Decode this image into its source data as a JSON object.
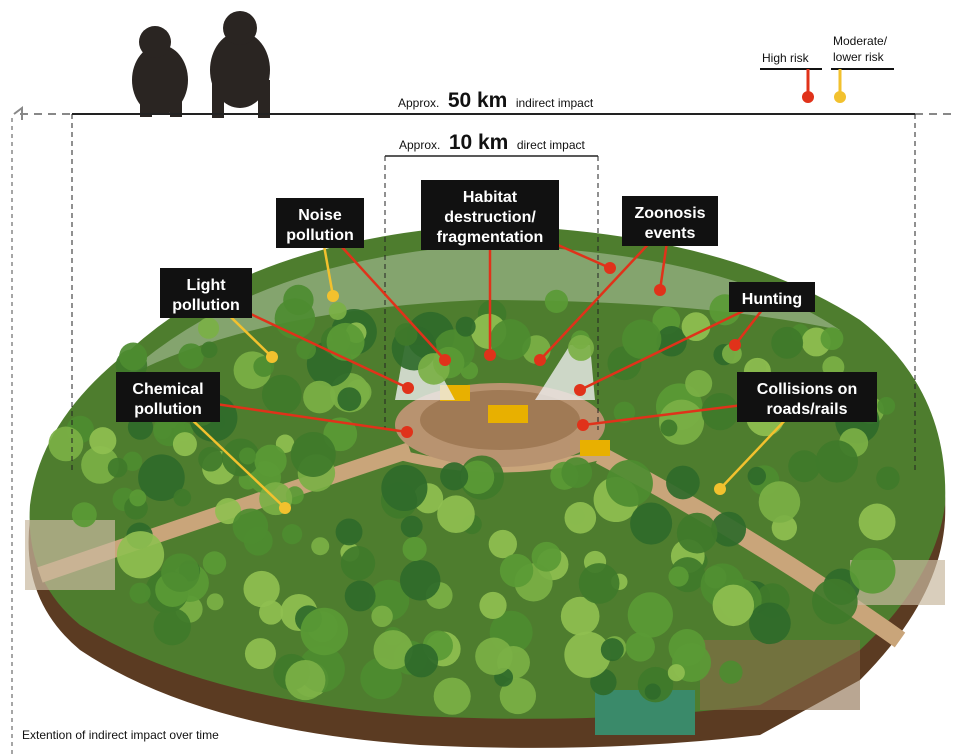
{
  "legend": {
    "high_risk": "High risk",
    "moderate_risk": [
      "Moderate/",
      "lower risk"
    ]
  },
  "scale": {
    "indirect": {
      "prefix": "Approx.",
      "distance": "50 km",
      "suffix": "indirect impact"
    },
    "direct": {
      "prefix": "Approx.",
      "distance": "10 km",
      "suffix": "direct impact"
    }
  },
  "labels": [
    {
      "lines": [
        "Noise",
        "pollution"
      ]
    },
    {
      "lines": [
        "Habitat",
        "destruction/",
        "fragmentation"
      ]
    },
    {
      "lines": [
        "Zoonosis",
        "events"
      ]
    },
    {
      "lines": [
        "Light",
        "pollution"
      ]
    },
    {
      "lines": [
        "Hunting"
      ]
    },
    {
      "lines": [
        "Chemical",
        "pollution"
      ]
    },
    {
      "lines": [
        "Collisions on",
        "roads/rails"
      ]
    }
  ],
  "footnote": "Extention of indirect impact over time"
}
